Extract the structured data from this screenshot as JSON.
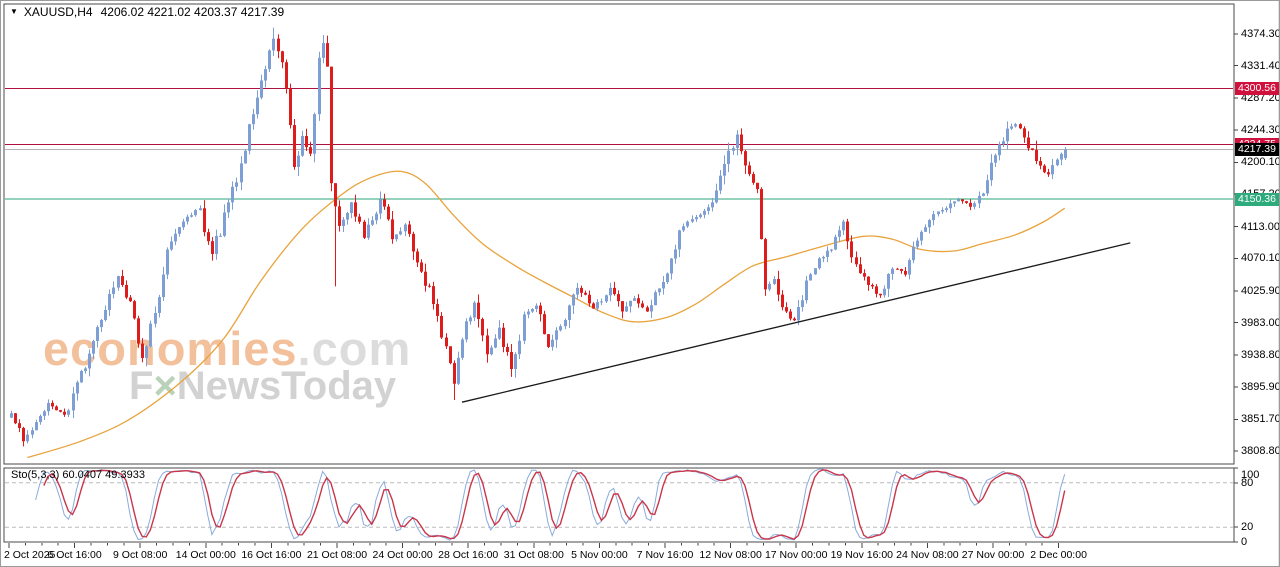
{
  "header": {
    "dropdown_glyph": "▼",
    "symbol_period": "XAUUSD,H4",
    "ohlc": "4206.02 4221.02 4203.37 4217.39"
  },
  "watermark": {
    "brand": "economies",
    "suffix": ".com",
    "tagline_prefix": "F",
    "tagline_x": "×",
    "tagline_rest": "NewsToday"
  },
  "indicator_panel": {
    "label": "Sto(5,3,3) 60.0407 49.3933",
    "axis_labels": [
      {
        "text": "100",
        "value": 100
      },
      {
        "text": "80",
        "value": 80
      },
      {
        "text": "20",
        "value": 20
      },
      {
        "text": "0",
        "value": 0
      }
    ],
    "dashed_levels": [
      80,
      20
    ]
  },
  "price_axis": {
    "labels": [
      {
        "text": "4374.30",
        "value": 4374.3
      },
      {
        "text": "4331.40",
        "value": 4331.4
      },
      {
        "text": "4287.20",
        "value": 4287.2
      },
      {
        "text": "4244.30",
        "value": 4244.3
      },
      {
        "text": "4200.10",
        "value": 4200.1
      },
      {
        "text": "4157.20",
        "value": 4157.2
      },
      {
        "text": "4113.00",
        "value": 4113.0
      },
      {
        "text": "4070.10",
        "value": 4070.1
      },
      {
        "text": "4025.90",
        "value": 4025.9
      },
      {
        "text": "3983.00",
        "value": 3983.0
      },
      {
        "text": "3938.80",
        "value": 3938.8
      },
      {
        "text": "3895.90",
        "value": 3895.9
      },
      {
        "text": "3851.70",
        "value": 3851.7
      },
      {
        "text": "3808.80",
        "value": 3808.8
      }
    ]
  },
  "time_axis": {
    "labels": [
      "2 Oct 2025",
      "6 Oct 16:00",
      "9 Oct 08:00",
      "14 Oct 00:00",
      "16 Oct 16:00",
      "21 Oct 08:00",
      "24 Oct 00:00",
      "28 Oct 16:00",
      "31 Oct 08:00",
      "5 Nov 00:00",
      "7 Nov 16:00",
      "12 Nov 08:00",
      "17 Nov 00:00",
      "19 Nov 16:00",
      "24 Nov 08:00",
      "27 Nov 00:00",
      "2 Dec 00:00"
    ]
  },
  "price_tags": [
    {
      "text": "4300.56",
      "value": 4300.56,
      "style": "resistance"
    },
    {
      "text": "4224.75",
      "value": 4224.75,
      "style": "resistance"
    },
    {
      "text": "4217.39",
      "value": 4217.39,
      "style": "current"
    },
    {
      "text": "4150.36",
      "value": 4150.36,
      "style": "support"
    }
  ],
  "colors": {
    "candle_up": "#7e9ed6",
    "candle_down": "#dd1c1c",
    "ma_line": "#e8a33c",
    "resistance_line": "#b01240",
    "support_line": "#2aa477",
    "current_price_line": "#b5b5b5",
    "trendline": "#1a1a1a",
    "stoch_k": "#8aabdc",
    "stoch_d": "#c9364a",
    "stoch_level_dash": "#bbbbbb",
    "frame": "#4a4a4a",
    "tag_resistance_bg": "#d0103d",
    "tag_support_bg": "#2eab7c",
    "tag_current_bg": "#000000"
  },
  "chart_data": {
    "type": "candlestick",
    "symbol": "XAUUSD",
    "timeframe": "H4",
    "title_ohlc": {
      "open": 4206.02,
      "high": 4221.02,
      "low": 4203.37,
      "close": 4217.39
    },
    "y_axis": {
      "min": 3795,
      "max": 4400,
      "tick_values": [
        4374.3,
        4331.4,
        4287.2,
        4244.3,
        4200.1,
        4157.2,
        4113.0,
        4070.1,
        4025.9,
        3983.0,
        3938.8,
        3895.9,
        3851.7,
        3808.8
      ]
    },
    "x_axis": {
      "bars": 258,
      "bars_per_label": 16,
      "labels": [
        "2 Oct 2025",
        "6 Oct 16:00",
        "9 Oct 08:00",
        "14 Oct 00:00",
        "16 Oct 16:00",
        "21 Oct 08:00",
        "24 Oct 00:00",
        "28 Oct 16:00",
        "31 Oct 08:00",
        "5 Nov 00:00",
        "7 Nov 16:00",
        "12 Nov 08:00",
        "17 Nov 00:00",
        "19 Nov 16:00",
        "24 Nov 08:00",
        "27 Nov 00:00",
        "2 Dec 00:00"
      ]
    },
    "horizontal_lines": [
      {
        "price": 4300.56,
        "role": "resistance"
      },
      {
        "price": 4224.75,
        "role": "resistance"
      },
      {
        "price": 4217.39,
        "role": "current"
      },
      {
        "price": 4150.36,
        "role": "support"
      }
    ],
    "trendline": {
      "from": {
        "bar": 110,
        "price": 3875
      },
      "to": {
        "bar": 273,
        "price": 4091
      }
    },
    "price_waypoints": [
      [
        0,
        3860
      ],
      [
        3,
        3822
      ],
      [
        6,
        3848
      ],
      [
        9,
        3874
      ],
      [
        13,
        3858
      ],
      [
        16,
        3902
      ],
      [
        20,
        3958
      ],
      [
        23,
        4000
      ],
      [
        26,
        4046
      ],
      [
        29,
        4012
      ],
      [
        32,
        3935
      ],
      [
        35,
        3996
      ],
      [
        38,
        4082
      ],
      [
        42,
        4120
      ],
      [
        46,
        4138
      ],
      [
        49,
        4076
      ],
      [
        53,
        4146
      ],
      [
        57,
        4216
      ],
      [
        60,
        4288
      ],
      [
        63,
        4352
      ],
      [
        64,
        4368
      ],
      [
        66,
        4336
      ],
      [
        69,
        4194
      ],
      [
        71,
        4236
      ],
      [
        73,
        4212
      ],
      [
        75,
        4342
      ],
      [
        76,
        4362
      ],
      [
        77,
        4330
      ],
      [
        78,
        4172
      ],
      [
        80,
        4114
      ],
      [
        83,
        4146
      ],
      [
        86,
        4098
      ],
      [
        90,
        4150
      ],
      [
        93,
        4096
      ],
      [
        96,
        4116
      ],
      [
        100,
        4052
      ],
      [
        104,
        3992
      ],
      [
        107,
        3928
      ],
      [
        108,
        3900
      ],
      [
        110,
        3960
      ],
      [
        113,
        4010
      ],
      [
        116,
        3940
      ],
      [
        119,
        3976
      ],
      [
        122,
        3920
      ],
      [
        125,
        3994
      ],
      [
        128,
        4006
      ],
      [
        131,
        3950
      ],
      [
        134,
        3978
      ],
      [
        138,
        4030
      ],
      [
        142,
        4002
      ],
      [
        146,
        4030
      ],
      [
        149,
        3998
      ],
      [
        152,
        4016
      ],
      [
        155,
        3998
      ],
      [
        159,
        4038
      ],
      [
        163,
        4108
      ],
      [
        167,
        4126
      ],
      [
        171,
        4146
      ],
      [
        174,
        4198
      ],
      [
        177,
        4238
      ],
      [
        179,
        4196
      ],
      [
        182,
        4164
      ],
      [
        184,
        4028
      ],
      [
        186,
        4042
      ],
      [
        189,
        3998
      ],
      [
        191,
        3986
      ],
      [
        194,
        4040
      ],
      [
        197,
        4070
      ],
      [
        200,
        4082
      ],
      [
        203,
        4120
      ],
      [
        206,
        4062
      ],
      [
        209,
        4034
      ],
      [
        212,
        4020
      ],
      [
        215,
        4056
      ],
      [
        218,
        4048
      ],
      [
        222,
        4106
      ],
      [
        225,
        4130
      ],
      [
        228,
        4138
      ],
      [
        231,
        4150
      ],
      [
        234,
        4140
      ],
      [
        237,
        4158
      ],
      [
        240,
        4210
      ],
      [
        243,
        4246
      ],
      [
        245,
        4252
      ],
      [
        247,
        4234
      ],
      [
        250,
        4202
      ],
      [
        253,
        4184
      ],
      [
        255,
        4204
      ],
      [
        257,
        4217.39
      ]
    ],
    "forced_bars": {
      "3": {
        "low": 3815
      },
      "64": {
        "high": 4383
      },
      "76": {
        "high": 4373
      },
      "78": {
        "close": 4172
      },
      "79": {
        "low": 4032
      },
      "108": {
        "low": 3878
      },
      "257": {
        "open": 4206.02,
        "high": 4221.02,
        "low": 4203.37,
        "close": 4217.39
      }
    },
    "ma_waypoints": [
      [
        4,
        3800
      ],
      [
        17,
        3822
      ],
      [
        29,
        3852
      ],
      [
        42,
        3905
      ],
      [
        52,
        3962
      ],
      [
        61,
        4040
      ],
      [
        71,
        4110
      ],
      [
        81,
        4158
      ],
      [
        88,
        4180
      ],
      [
        95,
        4188
      ],
      [
        101,
        4172
      ],
      [
        108,
        4128
      ],
      [
        115,
        4090
      ],
      [
        123,
        4060
      ],
      [
        130,
        4038
      ],
      [
        138,
        4015
      ],
      [
        145,
        3995
      ],
      [
        152,
        3984
      ],
      [
        160,
        3990
      ],
      [
        167,
        4008
      ],
      [
        174,
        4035
      ],
      [
        181,
        4060
      ],
      [
        189,
        4072
      ],
      [
        199,
        4088
      ],
      [
        208,
        4100
      ],
      [
        215,
        4096
      ],
      [
        222,
        4082
      ],
      [
        230,
        4080
      ],
      [
        237,
        4090
      ],
      [
        245,
        4102
      ],
      [
        252,
        4120
      ],
      [
        257,
        4138
      ]
    ],
    "stochastic": {
      "period": 5,
      "k_smooth": 3,
      "d_smooth": 3,
      "last_k": 60.0407,
      "last_d": 49.3933,
      "levels": [
        80,
        20
      ],
      "range": [
        0,
        100
      ]
    }
  }
}
